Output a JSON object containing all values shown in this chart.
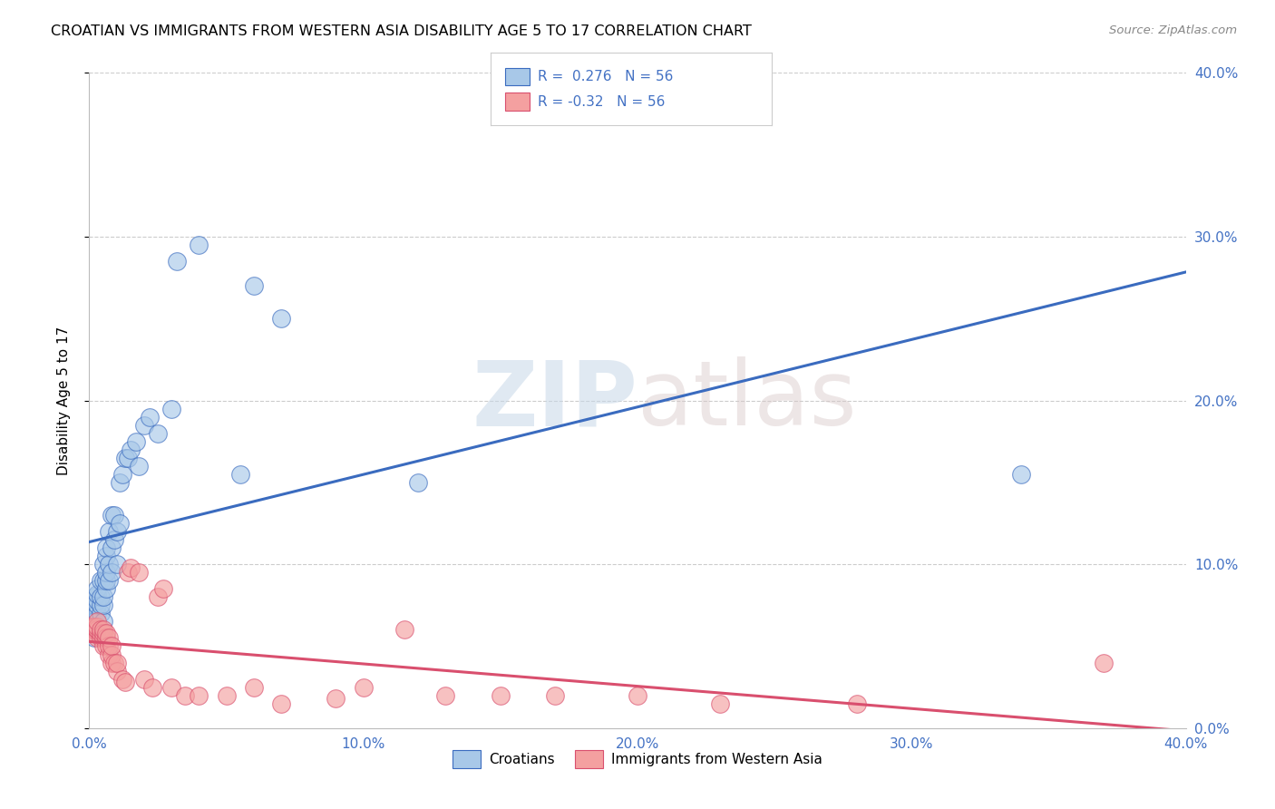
{
  "title": "CROATIAN VS IMMIGRANTS FROM WESTERN ASIA DISABILITY AGE 5 TO 17 CORRELATION CHART",
  "source": "Source: ZipAtlas.com",
  "ylabel": "Disability Age 5 to 17",
  "xlim": [
    0.0,
    0.4
  ],
  "ylim": [
    0.0,
    0.4
  ],
  "x_ticks": [
    0.0,
    0.1,
    0.2,
    0.3,
    0.4
  ],
  "y_ticks": [
    0.0,
    0.1,
    0.2,
    0.3,
    0.4
  ],
  "x_tick_labels": [
    "0.0%",
    "10.0%",
    "20.0%",
    "30.0%",
    "40.0%"
  ],
  "y_tick_labels_right": [
    "0.0%",
    "10.0%",
    "20.0%",
    "30.0%",
    "40.0%"
  ],
  "croatian_color": "#a8c8e8",
  "immigrants_color": "#f4a0a0",
  "croatian_line_color": "#3a6bbf",
  "immigrants_line_color": "#d94f6e",
  "R_croatian": 0.276,
  "R_immigrants": -0.32,
  "N": 56,
  "watermark_zip": "ZIP",
  "watermark_atlas": "atlas",
  "background_color": "#ffffff",
  "grid_color": "#cccccc",
  "legend_label_croatian": "Croatians",
  "legend_label_immigrants": "Immigrants from Western Asia",
  "croatian_x": [
    0.001,
    0.001,
    0.001,
    0.002,
    0.002,
    0.002,
    0.002,
    0.003,
    0.003,
    0.003,
    0.003,
    0.003,
    0.003,
    0.004,
    0.004,
    0.004,
    0.004,
    0.005,
    0.005,
    0.005,
    0.005,
    0.005,
    0.006,
    0.006,
    0.006,
    0.006,
    0.006,
    0.007,
    0.007,
    0.007,
    0.008,
    0.008,
    0.008,
    0.009,
    0.009,
    0.01,
    0.01,
    0.011,
    0.011,
    0.012,
    0.013,
    0.014,
    0.015,
    0.017,
    0.018,
    0.02,
    0.022,
    0.025,
    0.03,
    0.032,
    0.04,
    0.055,
    0.06,
    0.07,
    0.12,
    0.34
  ],
  "croatian_y": [
    0.06,
    0.065,
    0.075,
    0.055,
    0.065,
    0.075,
    0.08,
    0.06,
    0.07,
    0.075,
    0.078,
    0.082,
    0.085,
    0.07,
    0.075,
    0.08,
    0.09,
    0.065,
    0.075,
    0.08,
    0.09,
    0.1,
    0.085,
    0.09,
    0.095,
    0.105,
    0.11,
    0.09,
    0.1,
    0.12,
    0.095,
    0.11,
    0.13,
    0.115,
    0.13,
    0.1,
    0.12,
    0.125,
    0.15,
    0.155,
    0.165,
    0.165,
    0.17,
    0.175,
    0.16,
    0.185,
    0.19,
    0.18,
    0.195,
    0.285,
    0.295,
    0.155,
    0.27,
    0.25,
    0.15,
    0.155
  ],
  "immigrants_x": [
    0.001,
    0.001,
    0.001,
    0.002,
    0.002,
    0.002,
    0.002,
    0.003,
    0.003,
    0.003,
    0.003,
    0.003,
    0.004,
    0.004,
    0.004,
    0.005,
    0.005,
    0.005,
    0.005,
    0.006,
    0.006,
    0.006,
    0.007,
    0.007,
    0.007,
    0.008,
    0.008,
    0.008,
    0.009,
    0.01,
    0.01,
    0.012,
    0.013,
    0.014,
    0.015,
    0.018,
    0.02,
    0.023,
    0.025,
    0.027,
    0.03,
    0.035,
    0.04,
    0.05,
    0.06,
    0.07,
    0.09,
    0.1,
    0.115,
    0.13,
    0.15,
    0.17,
    0.2,
    0.23,
    0.28,
    0.37
  ],
  "immigrants_y": [
    0.06,
    0.06,
    0.062,
    0.058,
    0.06,
    0.06,
    0.062,
    0.055,
    0.06,
    0.06,
    0.062,
    0.065,
    0.055,
    0.058,
    0.06,
    0.05,
    0.055,
    0.058,
    0.06,
    0.05,
    0.055,
    0.058,
    0.045,
    0.05,
    0.055,
    0.04,
    0.045,
    0.05,
    0.04,
    0.035,
    0.04,
    0.03,
    0.028,
    0.095,
    0.098,
    0.095,
    0.03,
    0.025,
    0.08,
    0.085,
    0.025,
    0.02,
    0.02,
    0.02,
    0.025,
    0.015,
    0.018,
    0.025,
    0.06,
    0.02,
    0.02,
    0.02,
    0.02,
    0.015,
    0.015,
    0.04
  ]
}
